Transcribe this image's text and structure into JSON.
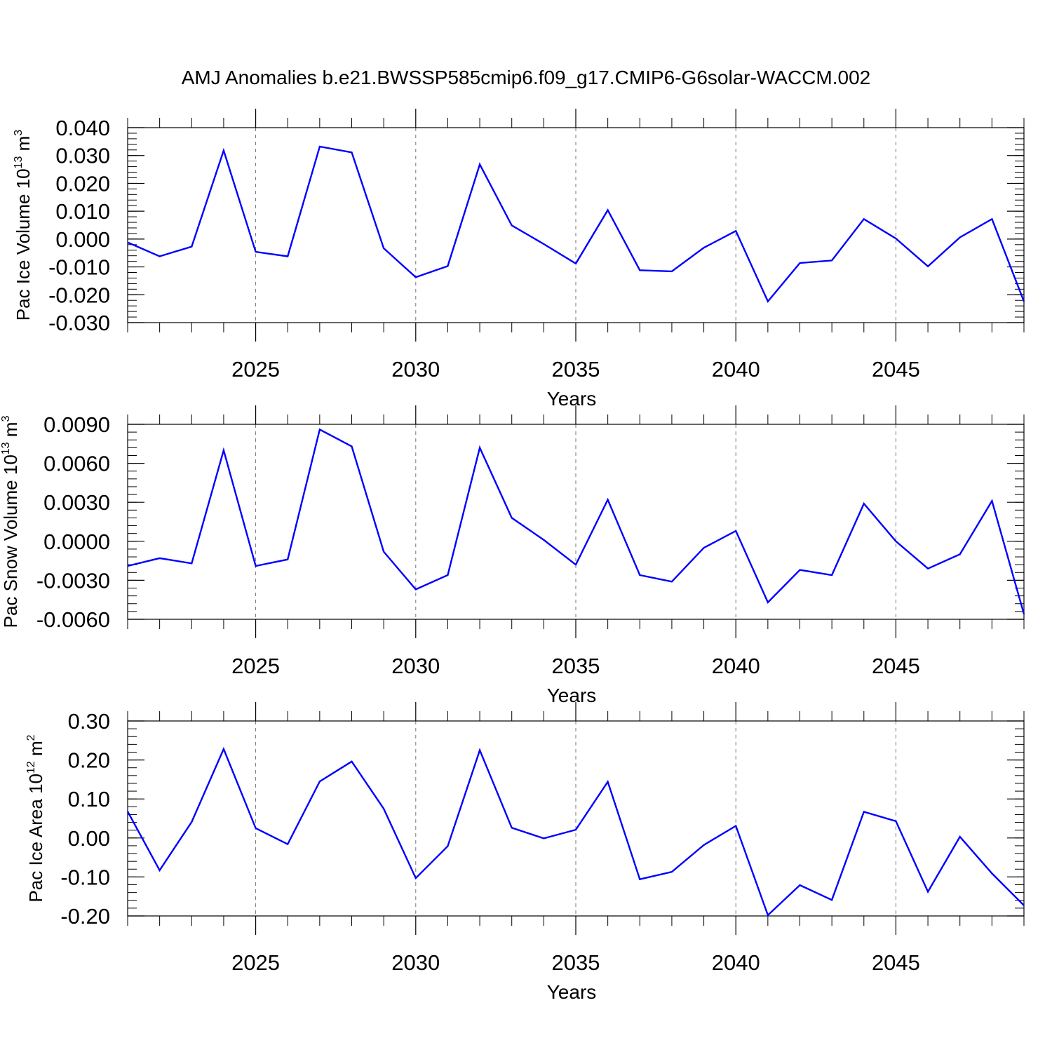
{
  "title": "AMJ Anomalies b.e21.BWSSP585cmip6.f09_g17.CMIP6-G6solar-WACCM.002",
  "line_color": "#0000ff",
  "chart_data": [
    {
      "type": "line",
      "ylabel": {
        "text": "Pac Ice Volume 10",
        "exp": "13",
        "unit": " m",
        "unit_exp": "3"
      },
      "xlabel": "Years",
      "xlim": [
        2021,
        2049
      ],
      "ylim": [
        -0.03,
        0.04
      ],
      "xticks": [
        2025,
        2030,
        2035,
        2040,
        2045
      ],
      "yticks": [
        -0.03,
        -0.02,
        -0.01,
        0.0,
        0.01,
        0.02,
        0.03,
        0.04
      ],
      "ytick_labels": [
        "-0.030",
        "-0.020",
        "-0.010",
        "0.000",
        "0.010",
        "0.020",
        "0.030",
        "0.040"
      ],
      "yminor": 0.002,
      "vgrid_dashed": true,
      "x": [
        2021,
        2022,
        2023,
        2024,
        2025,
        2026,
        2027,
        2028,
        2029,
        2030,
        2031,
        2032,
        2033,
        2034,
        2035,
        2036,
        2037,
        2038,
        2039,
        2040,
        2041,
        2042,
        2043,
        2044,
        2045,
        2046,
        2047,
        2048,
        2049
      ],
      "y": [
        -0.0012,
        -0.0062,
        -0.0027,
        0.0318,
        -0.0046,
        -0.0062,
        0.0332,
        0.0311,
        -0.0033,
        -0.0137,
        -0.0097,
        0.0268,
        0.0049,
        -0.0018,
        -0.0088,
        0.0104,
        -0.0112,
        -0.0116,
        -0.0031,
        0.0029,
        -0.0224,
        -0.0086,
        -0.0077,
        0.0072,
        0.0002,
        -0.0098,
        0.0006,
        0.0072,
        -0.0224
      ]
    },
    {
      "type": "line",
      "ylabel": {
        "text": "Pac Snow Volume 10",
        "exp": "13",
        "unit": " m",
        "unit_exp": "3"
      },
      "xlabel": "Years",
      "xlim": [
        2021,
        2049
      ],
      "ylim": [
        -0.006,
        0.009
      ],
      "xticks": [
        2025,
        2030,
        2035,
        2040,
        2045
      ],
      "yticks": [
        -0.006,
        -0.003,
        0.0,
        0.003,
        0.006,
        0.009
      ],
      "ytick_labels": [
        "-0.0060",
        "-0.0030",
        "0.0000",
        "0.0030",
        "0.0060",
        "0.0090"
      ],
      "yminor": 0.0006,
      "vgrid_dashed": true,
      "x": [
        2021,
        2022,
        2023,
        2024,
        2025,
        2026,
        2027,
        2028,
        2029,
        2030,
        2031,
        2032,
        2033,
        2034,
        2035,
        2036,
        2037,
        2038,
        2039,
        2040,
        2041,
        2042,
        2043,
        2044,
        2045,
        2046,
        2047,
        2048,
        2049
      ],
      "y": [
        -0.0019,
        -0.0013,
        -0.0017,
        0.007,
        -0.0019,
        -0.0014,
        0.0086,
        0.0073,
        -0.0008,
        -0.0037,
        -0.0026,
        0.0072,
        0.0018,
        0.0001,
        -0.0018,
        0.0032,
        -0.0026,
        -0.0031,
        -0.0005,
        0.0008,
        -0.0047,
        -0.0022,
        -0.0026,
        0.0029,
        0.0,
        -0.0021,
        -0.001,
        0.0031,
        -0.0056
      ]
    },
    {
      "type": "line",
      "ylabel": {
        "text": "Pac Ice Area 10",
        "exp": "12",
        "unit": " m",
        "unit_exp": "2"
      },
      "xlabel": "Years",
      "xlim": [
        2021,
        2049
      ],
      "ylim": [
        -0.2,
        0.3
      ],
      "xticks": [
        2025,
        2030,
        2035,
        2040,
        2045
      ],
      "yticks": [
        -0.2,
        -0.1,
        0.0,
        0.1,
        0.2,
        0.3
      ],
      "ytick_labels": [
        "-0.20",
        "-0.10",
        "0.00",
        "0.10",
        "0.20",
        "0.30"
      ],
      "yminor": 0.02,
      "vgrid_dashed": true,
      "x": [
        2021,
        2022,
        2023,
        2024,
        2025,
        2026,
        2027,
        2028,
        2029,
        2030,
        2031,
        2032,
        2033,
        2034,
        2035,
        2036,
        2037,
        2038,
        2039,
        2040,
        2041,
        2042,
        2043,
        2044,
        2045,
        2046,
        2047,
        2048,
        2049
      ],
      "y": [
        0.068,
        -0.083,
        0.041,
        0.228,
        0.025,
        -0.016,
        0.145,
        0.196,
        0.075,
        -0.103,
        -0.021,
        0.225,
        0.026,
        -0.001,
        0.021,
        0.144,
        -0.106,
        -0.087,
        -0.018,
        0.031,
        -0.198,
        -0.121,
        -0.159,
        0.067,
        0.043,
        -0.138,
        0.003,
        -0.091,
        -0.173
      ]
    }
  ]
}
